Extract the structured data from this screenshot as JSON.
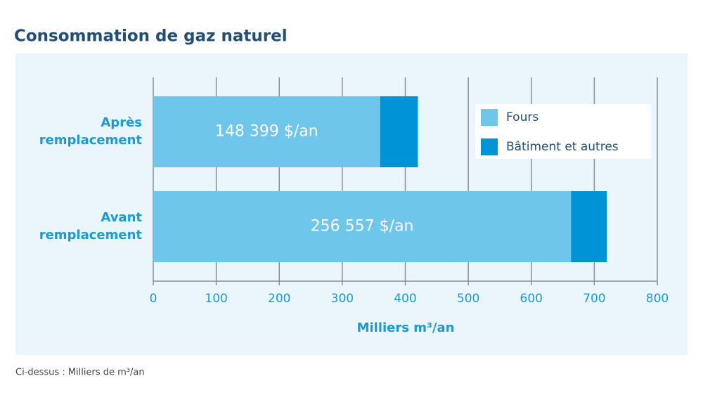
{
  "chart_data": {
    "type": "hbar-stacked",
    "title": "Consommation de gaz naturel",
    "categories": [
      "Après remplacement",
      "Avant remplacement"
    ],
    "series": [
      {
        "name": "Fours",
        "color": "#6ec6ea",
        "values": [
          360,
          663
        ]
      },
      {
        "name": "Bâtiment et autres",
        "color": "#0094d6",
        "values": [
          60,
          57
        ]
      }
    ],
    "bar_annotations": [
      "148 399 $/an",
      "256 557 $/an"
    ],
    "xlabel": "Milliers m³/an",
    "xlim": [
      0,
      800
    ],
    "xticks": [
      0,
      100,
      200,
      300,
      400,
      500,
      600,
      700,
      800
    ],
    "grid": true,
    "legend": "upper right",
    "footnote": "Ci-dessus : Milliers de m³/an"
  }
}
